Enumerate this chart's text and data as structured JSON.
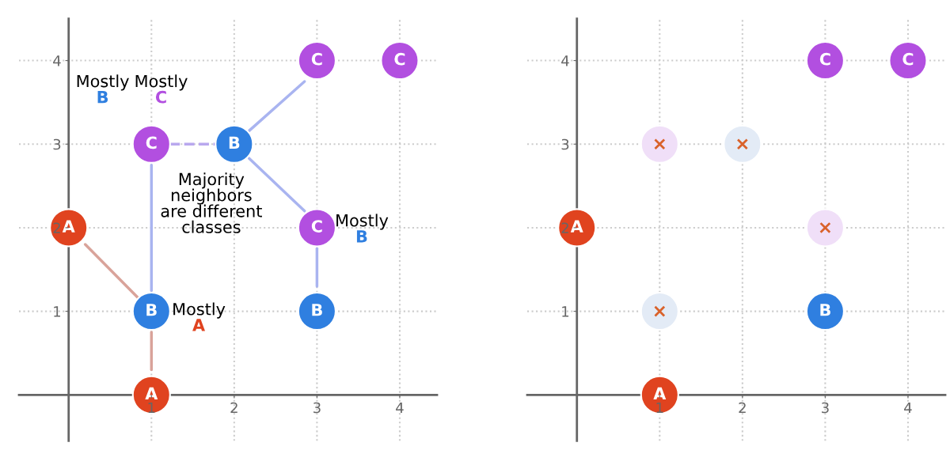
{
  "chart_data": [
    {
      "type": "scatter",
      "xlim": [
        -0.6,
        4.45
      ],
      "ylim": [
        -0.55,
        4.5
      ],
      "xticks": [
        1,
        2,
        3,
        4
      ],
      "yticks": [
        1,
        2,
        3,
        4
      ],
      "grid": true,
      "marker": "circle",
      "series": [
        {
          "type": "line",
          "marker": "none",
          "color": "#b9a8ee",
          "line_style": "dashed",
          "x": [
            1.22,
            1.78
          ],
          "values": [
            3,
            3
          ]
        },
        {
          "type": "line",
          "marker": "none",
          "color": "#a9b4f0",
          "line_style": "solid",
          "x": [
            2.18,
            2.85
          ],
          "values": [
            3.16,
            3.75
          ]
        },
        {
          "type": "line",
          "marker": "none",
          "color": "#a9b4f0",
          "line_style": "solid",
          "x": [
            1,
            1
          ],
          "values": [
            2.75,
            1.25
          ]
        },
        {
          "type": "line",
          "marker": "none",
          "color": "#a9b4f0",
          "line_style": "solid",
          "x": [
            2.18,
            2.85
          ],
          "values": [
            2.83,
            2.2
          ]
        },
        {
          "type": "line",
          "marker": "none",
          "color": "#a9b4f0",
          "line_style": "solid",
          "x": [
            3,
            3
          ],
          "values": [
            1.75,
            1.3
          ]
        },
        {
          "type": "line",
          "marker": "none",
          "color": "#d9a39a",
          "line_style": "solid",
          "x": [
            0.84,
            0.2
          ],
          "values": [
            1.16,
            1.8
          ]
        },
        {
          "type": "line",
          "marker": "none",
          "color": "#d9a39a",
          "line_style": "solid",
          "x": [
            1,
            1
          ],
          "values": [
            0.75,
            0.3
          ]
        },
        {
          "name": "A",
          "color": "#e0431f",
          "x": [
            0,
            1
          ],
          "values": [
            2,
            0
          ]
        },
        {
          "name": "B",
          "color": "#2f7fe0",
          "x": [
            2,
            1,
            3
          ],
          "values": [
            3,
            1,
            1
          ]
        },
        {
          "name": "C",
          "color": "#b24fe0",
          "x": [
            3,
            4,
            1,
            3
          ],
          "values": [
            4,
            4,
            3,
            2
          ]
        }
      ],
      "annotations": [
        "Mostly\nB",
        "Mostly\nC",
        "Majority\nneighbors\nare different\nclasses",
        "Mostly\nA",
        "Mostly\nB"
      ]
    },
    {
      "type": "scatter",
      "xlim": [
        -0.6,
        4.45
      ],
      "ylim": [
        -0.55,
        4.5
      ],
      "xticks": [
        1,
        2,
        3,
        4
      ],
      "yticks": [
        1,
        2,
        3,
        4
      ],
      "grid": true,
      "marker": "circle",
      "series": [
        {
          "colors": [
            "#f0dff8",
            "#e3ebf6",
            "#e3ebf6",
            "#f0dff8"
          ],
          "x": [
            1,
            2,
            1,
            3
          ],
          "values": [
            3,
            3,
            1,
            2
          ]
        },
        {
          "marker": "cross",
          "color": "#d9622b",
          "x": [
            1,
            2,
            1,
            3
          ],
          "values": [
            3,
            3,
            1,
            2
          ]
        },
        {
          "name": "A",
          "color": "#e0431f",
          "x": [
            0,
            1
          ],
          "values": [
            2,
            0
          ]
        },
        {
          "name": "B",
          "color": "#2f7fe0",
          "x": [
            3
          ],
          "values": [
            1
          ]
        },
        {
          "name": "C",
          "color": "#b24fe0",
          "x": [
            3,
            4
          ],
          "values": [
            4,
            4
          ]
        }
      ]
    }
  ]
}
